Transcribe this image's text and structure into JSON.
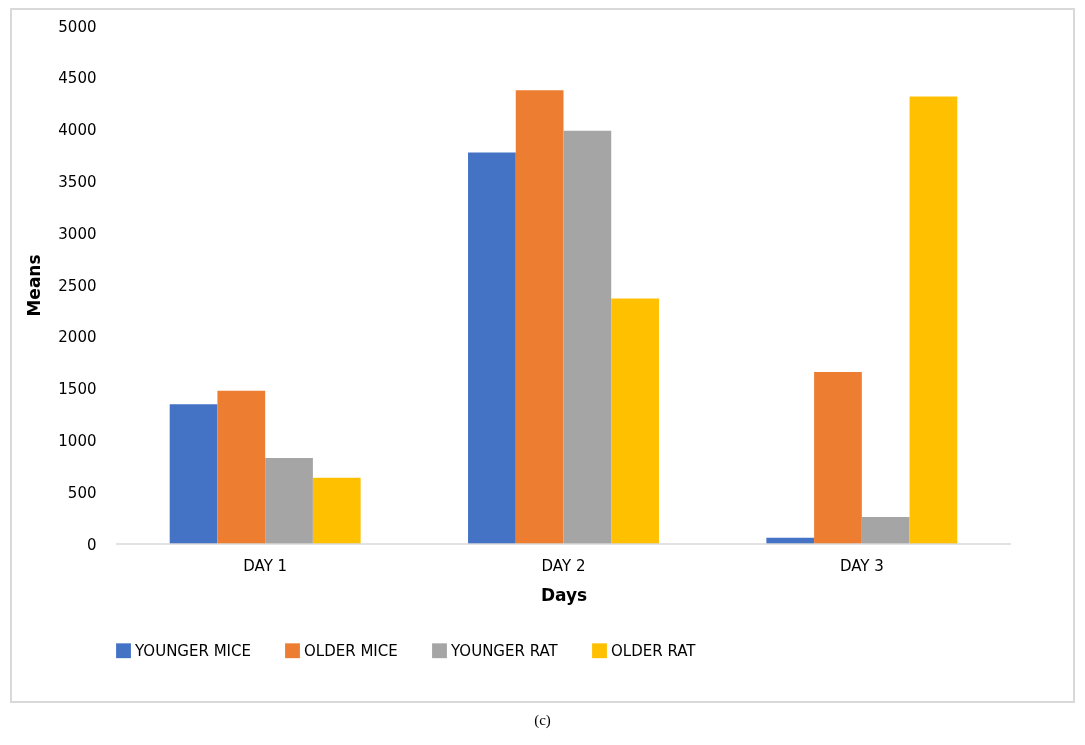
{
  "chart_data": {
    "type": "bar",
    "xlabel": "Days",
    "ylabel": "Means",
    "categories": [
      "DAY 1",
      "DAY 2",
      "DAY 3"
    ],
    "series": [
      {
        "name": "YOUNGER MICE",
        "color": "#4472c4",
        "values": [
          1350,
          3780,
          60
        ]
      },
      {
        "name": "OLDER MICE",
        "color": "#ed7d31",
        "values": [
          1480,
          4380,
          1660
        ]
      },
      {
        "name": "YOUNGER RAT",
        "color": "#a5a5a5",
        "values": [
          830,
          3990,
          260
        ]
      },
      {
        "name": "OLDER RAT",
        "color": "#ffc000",
        "values": [
          640,
          2370,
          4320
        ]
      }
    ],
    "ylim": [
      0,
      5000
    ],
    "yticks": [
      0,
      500,
      1000,
      1500,
      2000,
      2500,
      3000,
      3500,
      4000,
      4500,
      5000
    ],
    "grid": false,
    "legend": "bottom",
    "annotations": [
      "(c)"
    ]
  }
}
